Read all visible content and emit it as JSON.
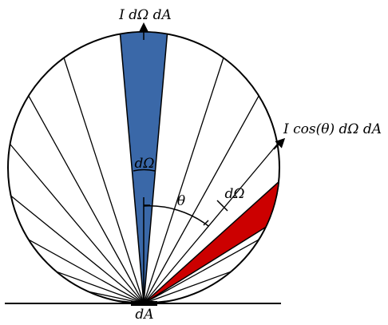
{
  "labels": {
    "top": "I dΩ dA",
    "right": "I cos(θ) dΩ dA",
    "base": "dA",
    "normal_solid_angle": "dΩ",
    "oblique_solid_angle": "dΩ",
    "angle": "θ"
  },
  "colors": {
    "normal_wedge": "#3a68a8",
    "oblique_wedge": "#cc0000",
    "outline": "#000000",
    "background": "#ffffff"
  },
  "diagram": {
    "ray_angles_deg": [
      -88,
      -84,
      -78,
      -70,
      -61,
      -51,
      -40,
      -29,
      -18,
      18,
      29,
      40,
      51,
      61,
      70,
      84,
      88
    ],
    "highlight_normal": {
      "angle_deg": 0,
      "half_width_deg": 5
    },
    "highlight_oblique": {
      "angle_deg": 53,
      "half_width_deg": 5
    }
  }
}
